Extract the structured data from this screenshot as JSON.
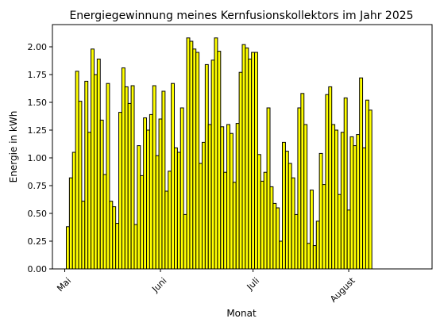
{
  "chart_data": {
    "type": "bar",
    "title": "Energiegewinnung meines Kernfusionskollektors im Jahr 2025",
    "xlabel": "Monat",
    "ylabel": "Energie in kWh",
    "ylim": [
      0,
      2.2
    ],
    "yticks": [
      0.0,
      0.25,
      0.5,
      0.75,
      1.0,
      1.25,
      1.5,
      1.75,
      2.0
    ],
    "ytick_labels": [
      "0.00",
      "0.25",
      "0.50",
      "0.75",
      "1.00",
      "1.25",
      "1.50",
      "1.75",
      "2.00"
    ],
    "xlim": [
      "2025-04-27",
      "2025-08-28"
    ],
    "xticks": [
      {
        "date": "2025-05-01",
        "label": "Mai"
      },
      {
        "date": "2025-06-01",
        "label": "Juni"
      },
      {
        "date": "2025-07-01",
        "label": "Juli"
      },
      {
        "date": "2025-08-01",
        "label": "August"
      }
    ],
    "bar_color": "#ffff00",
    "edge_color": "#000000",
    "grid": false,
    "start_date": "2025-05-02",
    "values": [
      0.38,
      0.82,
      1.05,
      1.78,
      1.51,
      0.61,
      1.69,
      1.23,
      1.98,
      1.75,
      1.89,
      1.34,
      0.85,
      1.67,
      0.61,
      0.56,
      0.41,
      1.41,
      1.81,
      1.64,
      1.49,
      1.65,
      0.4,
      1.11,
      0.84,
      1.36,
      1.25,
      1.39,
      1.65,
      1.02,
      1.35,
      1.6,
      0.7,
      0.88,
      1.67,
      1.09,
      1.05,
      1.45,
      0.49,
      2.08,
      2.05,
      1.98,
      1.95,
      0.95,
      1.14,
      1.84,
      1.3,
      1.88,
      2.08,
      1.96,
      1.28,
      0.87,
      1.3,
      1.22,
      0.78,
      1.31,
      1.77,
      2.02,
      1.99,
      1.89,
      1.95,
      1.95,
      1.03,
      0.79,
      0.87,
      1.45,
      0.74,
      0.59,
      0.55,
      0.25,
      1.14,
      1.06,
      0.95,
      0.82,
      0.49,
      1.45,
      1.58,
      1.3,
      0.23,
      0.71,
      0.21,
      0.43,
      1.04,
      0.76,
      1.57,
      1.64,
      1.3,
      1.25,
      0.67,
      1.23,
      1.54,
      0.53,
      1.19,
      1.11,
      1.21,
      1.72,
      1.09,
      1.52,
      1.43
    ]
  }
}
